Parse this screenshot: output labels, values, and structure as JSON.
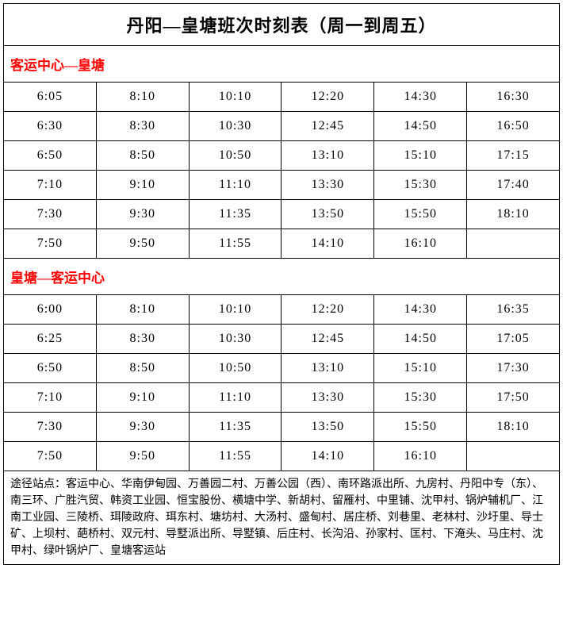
{
  "title": "丹阳—皇塘班次时刻表（周一到周五）",
  "section1": {
    "header": "客运中心—皇塘",
    "rows": [
      [
        "6:05",
        "8:10",
        "10:10",
        "12:20",
        "14:30",
        "16:30"
      ],
      [
        "6:30",
        "8:30",
        "10:30",
        "12:45",
        "14:50",
        "16:50"
      ],
      [
        "6:50",
        "8:50",
        "10:50",
        "13:10",
        "15:10",
        "17:15"
      ],
      [
        "7:10",
        "9:10",
        "11:10",
        "13:30",
        "15:30",
        "17:40"
      ],
      [
        "7:30",
        "9:30",
        "11:35",
        "13:50",
        "15:50",
        "18:10"
      ],
      [
        "7:50",
        "9:50",
        "11:55",
        "14:10",
        "16:10",
        ""
      ]
    ]
  },
  "section2": {
    "header": "皇塘—客运中心",
    "rows": [
      [
        "6:00",
        "8:10",
        "10:10",
        "12:20",
        "14:30",
        "16:35"
      ],
      [
        "6:25",
        "8:30",
        "10:30",
        "12:45",
        "14:50",
        "17:05"
      ],
      [
        "6:50",
        "8:50",
        "10:50",
        "13:10",
        "15:10",
        "17:30"
      ],
      [
        "7:10",
        "9:10",
        "11:10",
        "13:30",
        "15:30",
        "17:50"
      ],
      [
        "7:30",
        "9:30",
        "11:35",
        "13:50",
        "15:50",
        "18:10"
      ],
      [
        "7:50",
        "9:50",
        "11:55",
        "14:10",
        "16:10",
        ""
      ]
    ]
  },
  "footnote": "途径站点：客运中心、华南伊甸园、万善园二村、万善公园（西）、南环路派出所、九房村、丹阳中专（东）、南三环、广胜汽贸、韩资工业园、恒宝股份、横塘中学、新胡村、留雁村、中里铺、沈甲村、锅炉辅机厂、江南工业园、三陵桥、珥陵政府、珥东村、塘坊村、大汤村、盛甸村、居庄桥、刘巷里、老林村、沙圩里、导士矿、上坝村、葩桥村、双元村、导墅派出所、导墅镇、后庄村、长沟沿、孙家村、匡村、下淹头、马庄村、沈甲村、绿叶锅炉厂、皇塘客运站",
  "colors": {
    "border": "#000000",
    "section_header_text": "#ff0000",
    "title_text": "#000000",
    "body_text": "#000000",
    "background": "#ffffff"
  },
  "typography": {
    "title_fontsize": 22,
    "section_header_fontsize": 17,
    "cell_fontsize": 16,
    "footnote_fontsize": 14,
    "font_family": "SimSun"
  },
  "layout": {
    "columns": 6,
    "section1_rows": 6,
    "section2_rows": 6
  }
}
